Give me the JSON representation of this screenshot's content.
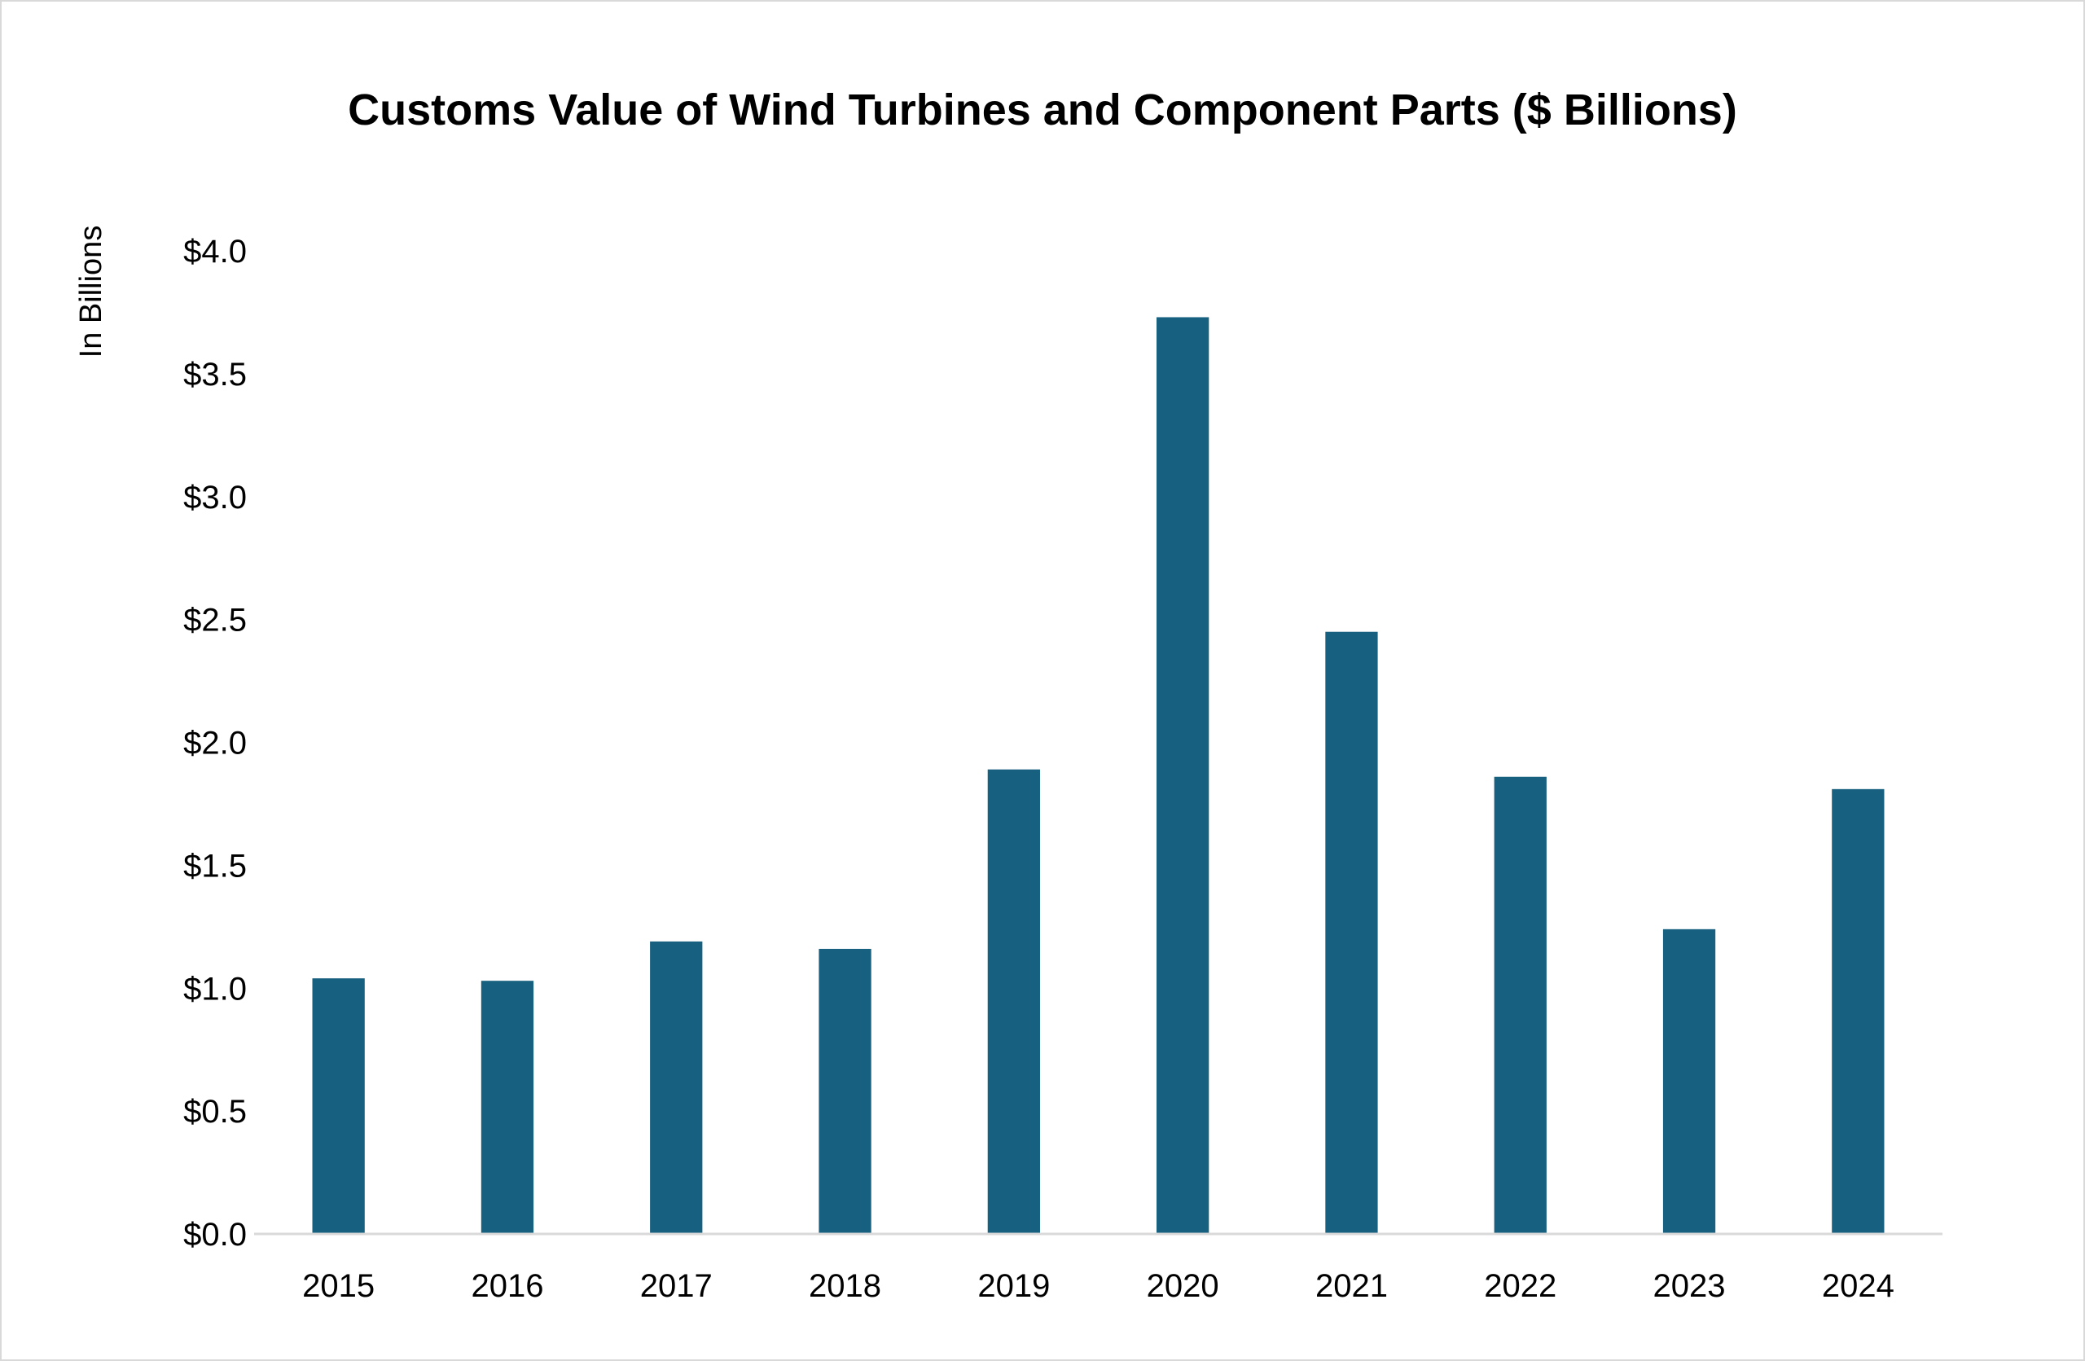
{
  "chart_data": {
    "type": "bar",
    "title": "Customs Value of Wind Turbines and Component Parts ($ Billions)",
    "xlabel": "",
    "ylabel": "In Billions",
    "categories": [
      "2015",
      "2016",
      "2017",
      "2018",
      "2019",
      "2020",
      "2021",
      "2022",
      "2023",
      "2024"
    ],
    "values": [
      1.04,
      1.03,
      1.19,
      1.16,
      1.89,
      3.73,
      2.45,
      1.86,
      1.24,
      1.81
    ],
    "ylim": [
      0,
      4.0
    ],
    "yticks": [
      0,
      0.5,
      1.0,
      1.5,
      2.0,
      2.5,
      3.0,
      3.5,
      4.0
    ],
    "ytick_labels": [
      "$0.0",
      "$0.5",
      "$1.0",
      "$1.5",
      "$2.0",
      "$2.5",
      "$3.0",
      "$3.5",
      "$4.0"
    ],
    "grid": false,
    "legend": "none",
    "bar_color": "#17607f",
    "axis_color": "#d9d9d9"
  }
}
